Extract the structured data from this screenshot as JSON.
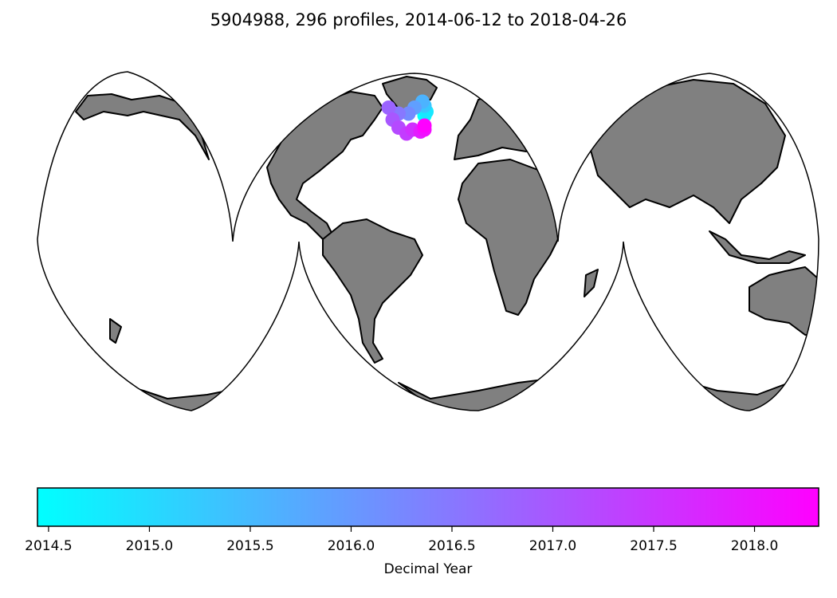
{
  "title": "5904988, 296 profiles, 2014-06-12 to 2018-04-26",
  "colorbar": {
    "label": "Decimal Year",
    "min": 2014.445,
    "max": 2018.318,
    "colors": [
      "#00ffff",
      "#ff00ff"
    ],
    "ticks": [
      "2014.5",
      "2015.0",
      "2015.5",
      "2016.0",
      "2016.5",
      "2017.0",
      "2017.5",
      "2018.0"
    ]
  },
  "map": {
    "projection": "Interrupted Goode Homolosine",
    "land_color": "#808080",
    "trajectory": [
      {
        "lon": -35,
        "lat": 59,
        "year": 2014.45
      },
      {
        "lon": -34,
        "lat": 60,
        "year": 2014.8
      },
      {
        "lon": -35,
        "lat": 61.5,
        "year": 2015.3
      },
      {
        "lon": -36,
        "lat": 62.5,
        "year": 2015.6
      },
      {
        "lon": -40,
        "lat": 61,
        "year": 2015.9
      },
      {
        "lon": -43,
        "lat": 59.5,
        "year": 2016.2
      },
      {
        "lon": -48,
        "lat": 59.5,
        "year": 2016.5
      },
      {
        "lon": -53,
        "lat": 61,
        "year": 2016.8
      },
      {
        "lon": -51,
        "lat": 58,
        "year": 2017.0
      },
      {
        "lon": -48,
        "lat": 56,
        "year": 2017.2
      },
      {
        "lon": -44,
        "lat": 54.5,
        "year": 2017.4
      },
      {
        "lon": -41,
        "lat": 55.5,
        "year": 2017.6
      },
      {
        "lon": -37,
        "lat": 55,
        "year": 2017.9
      },
      {
        "lon": -35,
        "lat": 55.5,
        "year": 2018.1
      },
      {
        "lon": -35,
        "lat": 56.5,
        "year": 2018.3
      }
    ]
  }
}
